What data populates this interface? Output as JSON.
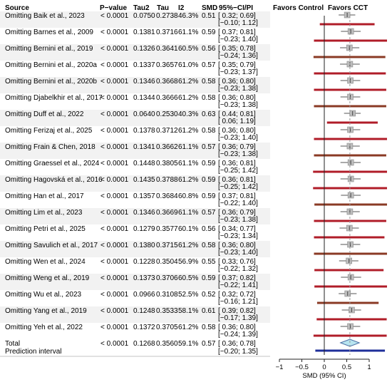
{
  "headers": {
    "source": "Source",
    "pvalue": "P−value",
    "tau2": "Tau2",
    "tau": "Tau",
    "i2": "I2",
    "smd": "SMD",
    "ci": "95%−CI/PI",
    "favors_control": "Favors Control",
    "favors_cct": "Favors CCT"
  },
  "colors": {
    "pi_line": "#b01c28",
    "pi_line_alt": "#8a3a24",
    "summary_diamond": "#b7e4ef",
    "summary_outline": "#4a6fa5",
    "prediction_interval": "#1f2f9a",
    "point_box": "#bdbdbd",
    "row_shade": "#f2f2f2"
  },
  "chart_data": {
    "type": "forest",
    "xlabel": "SMD (95% CI)",
    "xlim": [
      -1.05,
      1.35
    ],
    "xticks": [
      -1,
      -0.5,
      0,
      0.5,
      1
    ],
    "xtick_labels": [
      "−1",
      "−0.5",
      "0",
      "0.5",
      "1"
    ],
    "rows": [
      {
        "name": "Omitting Baik et al., 2023",
        "p": "< 0.0001",
        "tau2": "0.0750",
        "tau": "0.2738",
        "i2": "46.3%",
        "smd": 0.51,
        "smd_label": "0.51",
        "ci": [
          0.32,
          0.69
        ],
        "ci_label": "[ 0.32; 0.69]",
        "pi": [
          -0.1,
          1.12
        ],
        "pi_label": "[−0.10; 1.12]"
      },
      {
        "name": "Omitting Barnes et al., 2009",
        "p": "< 0.0001",
        "tau2": "0.1381",
        "tau": "0.3716",
        "i2": "61.1%",
        "smd": 0.59,
        "smd_label": "0.59",
        "ci": [
          0.37,
          0.81
        ],
        "ci_label": "[ 0.37; 0.81]",
        "pi": [
          -0.23,
          1.4
        ],
        "pi_label": "[−0.23; 1.40]"
      },
      {
        "name": "Omitting Bernini et al., 2019",
        "p": "< 0.0001",
        "tau2": "0.1326",
        "tau": "0.3641",
        "i2": "60.5%",
        "smd": 0.56,
        "smd_label": "0.56",
        "ci": [
          0.35,
          0.78
        ],
        "ci_label": "[ 0.35; 0.78]",
        "pi": [
          -0.24,
          1.36
        ],
        "pi_label": "[−0.24; 1.36]"
      },
      {
        "name": "Omitting Bernini et al., 2020a",
        "p": "< 0.0001",
        "tau2": "0.1337",
        "tau": "0.3657",
        "i2": "61.0%",
        "smd": 0.57,
        "smd_label": "0.57",
        "ci": [
          0.35,
          0.79
        ],
        "ci_label": "[ 0.35; 0.79]",
        "pi": [
          -0.23,
          1.37
        ],
        "pi_label": "[−0.23; 1.37]"
      },
      {
        "name": "Omitting Bernini et al., 2020b",
        "p": "< 0.0001",
        "tau2": "0.1346",
        "tau": "0.3668",
        "i2": "61.2%",
        "smd": 0.58,
        "smd_label": "0.58",
        "ci": [
          0.36,
          0.8
        ],
        "ci_label": "[ 0.36; 0.80]",
        "pi": [
          -0.23,
          1.38
        ],
        "pi_label": "[−0.23; 1.38]"
      },
      {
        "name": "Omitting Djabelkhir et al., 2017",
        "p": "< 0.0001",
        "tau2": "0.1344",
        "tau": "0.3666",
        "i2": "61.2%",
        "smd": 0.58,
        "smd_label": "0.58",
        "ci": [
          0.36,
          0.8
        ],
        "ci_label": "[ 0.36; 0.80]",
        "pi": [
          -0.23,
          1.38
        ],
        "pi_label": "[−0.23; 1.38]"
      },
      {
        "name": "Omitting Duff et al., 2022",
        "p": "< 0.0001",
        "tau2": "0.0640",
        "tau": "0.2530",
        "i2": "40.3%",
        "smd": 0.63,
        "smd_label": "0.63",
        "ci": [
          0.44,
          0.81
        ],
        "ci_label": "[ 0.44; 0.81]",
        "pi": [
          0.06,
          1.19
        ],
        "pi_label": "[ 0.06; 1.19]"
      },
      {
        "name": "Omitting Ferizaj et al., 2025",
        "p": "< 0.0001",
        "tau2": "0.1378",
        "tau": "0.3712",
        "i2": "61.2%",
        "smd": 0.58,
        "smd_label": "0.58",
        "ci": [
          0.36,
          0.8
        ],
        "ci_label": "[ 0.36; 0.80]",
        "pi": [
          -0.23,
          1.4
        ],
        "pi_label": "[−0.23; 1.40]"
      },
      {
        "name": "Omitting Frain & Chen, 2018",
        "p": "< 0.0001",
        "tau2": "0.1341",
        "tau": "0.3662",
        "i2": "61.1%",
        "smd": 0.57,
        "smd_label": "0.57",
        "ci": [
          0.36,
          0.79
        ],
        "ci_label": "[ 0.36; 0.79]",
        "pi": [
          -0.23,
          1.38
        ],
        "pi_label": "[−0.23; 1.38]"
      },
      {
        "name": "Omitting Graessel et al., 2024",
        "p": "< 0.0001",
        "tau2": "0.1448",
        "tau": "0.3805",
        "i2": "61.1%",
        "smd": 0.59,
        "smd_label": "0.59",
        "ci": [
          0.36,
          0.81
        ],
        "ci_label": "[ 0.36; 0.81]",
        "pi": [
          -0.25,
          1.42
        ],
        "pi_label": "[−0.25; 1.42]"
      },
      {
        "name": "Omitting Hagovská et al., 2016",
        "p": "< 0.0001",
        "tau2": "0.1435",
        "tau": "0.3788",
        "i2": "61.2%",
        "smd": 0.59,
        "smd_label": "0.59",
        "ci": [
          0.36,
          0.81
        ],
        "ci_label": "[ 0.36; 0.81]",
        "pi": [
          -0.25,
          1.42
        ],
        "pi_label": "[−0.25; 1.42]"
      },
      {
        "name": "Omitting Han et al., 2017",
        "p": "< 0.0001",
        "tau2": "0.1357",
        "tau": "0.3684",
        "i2": "60.8%",
        "smd": 0.59,
        "smd_label": "0.59",
        "ci": [
          0.37,
          0.81
        ],
        "ci_label": "[ 0.37; 0.81]",
        "pi": [
          -0.22,
          1.4
        ],
        "pi_label": "[−0.22; 1.40]"
      },
      {
        "name": "Omitting Lim et al., 2023",
        "p": "< 0.0001",
        "tau2": "0.1346",
        "tau": "0.3669",
        "i2": "61.1%",
        "smd": 0.57,
        "smd_label": "0.57",
        "ci": [
          0.36,
          0.79
        ],
        "ci_label": "[ 0.36; 0.79]",
        "pi": [
          -0.23,
          1.38
        ],
        "pi_label": "[−0.23; 1.38]"
      },
      {
        "name": "Omitting Petri et al., 2025",
        "p": "< 0.0001",
        "tau2": "0.1279",
        "tau": "0.3577",
        "i2": "60.1%",
        "smd": 0.56,
        "smd_label": "0.56",
        "ci": [
          0.34,
          0.77
        ],
        "ci_label": "[ 0.34; 0.77]",
        "pi": [
          -0.23,
          1.34
        ],
        "pi_label": "[−0.23; 1.34]"
      },
      {
        "name": "Omitting Savulich et al., 2017",
        "p": "< 0.0001",
        "tau2": "0.1380",
        "tau": "0.3715",
        "i2": "61.2%",
        "smd": 0.58,
        "smd_label": "0.58",
        "ci": [
          0.36,
          0.8
        ],
        "ci_label": "[ 0.36; 0.80]",
        "pi": [
          -0.23,
          1.4
        ],
        "pi_label": "[−0.23; 1.40]"
      },
      {
        "name": "Omitting Wen et al., 2024",
        "p": "< 0.0001",
        "tau2": "0.1228",
        "tau": "0.3504",
        "i2": "56.9%",
        "smd": 0.55,
        "smd_label": "0.55",
        "ci": [
          0.33,
          0.76
        ],
        "ci_label": "[ 0.33; 0.76]",
        "pi": [
          -0.22,
          1.32
        ],
        "pi_label": "[−0.22; 1.32]"
      },
      {
        "name": "Omitting Weng et al., 2019",
        "p": "< 0.0001",
        "tau2": "0.1373",
        "tau": "0.3706",
        "i2": "60.5%",
        "smd": 0.59,
        "smd_label": "0.59",
        "ci": [
          0.37,
          0.82
        ],
        "ci_label": "[ 0.37; 0.82]",
        "pi": [
          -0.22,
          1.41
        ],
        "pi_label": "[−0.22; 1.41]"
      },
      {
        "name": "Omitting Wu et al., 2023",
        "p": "< 0.0001",
        "tau2": "0.0966",
        "tau": "0.3108",
        "i2": "52.5%",
        "smd": 0.52,
        "smd_label": "0.52",
        "ci": [
          0.32,
          0.72
        ],
        "ci_label": "[ 0.32; 0.72]",
        "pi": [
          -0.16,
          1.21
        ],
        "pi_label": "[−0.16; 1.21]"
      },
      {
        "name": "Omitting Yang et al., 2019",
        "p": "< 0.0001",
        "tau2": "0.1248",
        "tau": "0.3533",
        "i2": "58.1%",
        "smd": 0.61,
        "smd_label": "0.61",
        "ci": [
          0.39,
          0.82
        ],
        "ci_label": "[ 0.39; 0.82]",
        "pi": [
          -0.17,
          1.39
        ],
        "pi_label": "[−0.17; 1.39]"
      },
      {
        "name": "Omitting Yeh et al., 2022",
        "p": "< 0.0001",
        "tau2": "0.1372",
        "tau": "0.3705",
        "i2": "61.2%",
        "smd": 0.58,
        "smd_label": "0.58",
        "ci": [
          0.36,
          0.8
        ],
        "ci_label": "[ 0.36; 0.80]",
        "pi": [
          -0.24,
          1.39
        ],
        "pi_label": "[−0.24; 1.39]"
      }
    ],
    "total": {
      "name": "Total",
      "p": "< 0.0001",
      "tau2": "0.1268",
      "tau": "0.3560",
      "i2": "59.1%",
      "smd": 0.57,
      "smd_label": "0.57",
      "ci": [
        0.36,
        0.78
      ],
      "ci_label": "[ 0.36; 0.78]"
    },
    "prediction": {
      "name": "Prediction interval",
      "pi": [
        -0.2,
        1.35
      ],
      "pi_label": "[−0.20; 1.35]"
    }
  }
}
